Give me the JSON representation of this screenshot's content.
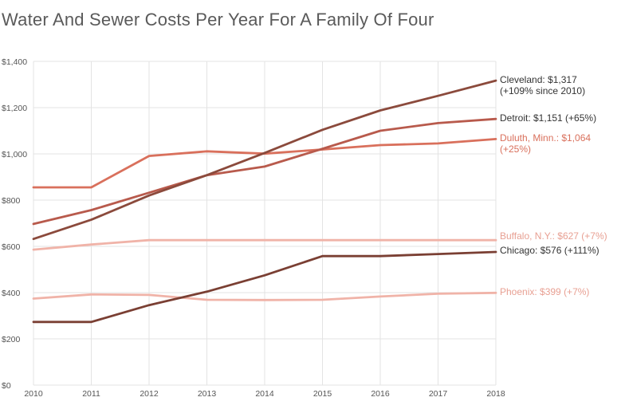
{
  "title": "Water And Sewer Costs Per Year For A Family Of Four",
  "chart_data": {
    "type": "line",
    "title": "Water And Sewer Costs Per Year For A Family Of Four",
    "xlabel": "",
    "ylabel": "",
    "x": [
      2010,
      2011,
      2012,
      2013,
      2014,
      2015,
      2016,
      2017,
      2018
    ],
    "xlim": [
      2010,
      2018
    ],
    "ylim": [
      0,
      1400
    ],
    "y_ticks": [
      0,
      200,
      400,
      600,
      800,
      1000,
      1200,
      1400
    ],
    "y_tick_labels": [
      "$0",
      "$200",
      "$400",
      "$600",
      "$800",
      "$1,000",
      "$1,200",
      "$1,400"
    ],
    "x_tick_labels": [
      "2010",
      "2011",
      "2012",
      "2013",
      "2014",
      "2015",
      "2016",
      "2017",
      "2018"
    ],
    "grid": true,
    "legend": "direct labels at right end of each line",
    "series": [
      {
        "name": "Cleveland",
        "color": "#8b4a3c",
        "label_lines": [
          "Cleveland: $1,317",
          "(+109% since 2010)"
        ],
        "label_color": "#333333",
        "values": [
          632,
          715,
          820,
          908,
          1004,
          1104,
          1188,
          1251,
          1317
        ]
      },
      {
        "name": "Detroit",
        "color": "#b85a4c",
        "label_lines": [
          "Detroit: $1,151 (+65%)"
        ],
        "label_color": "#333333",
        "values": [
          697,
          757,
          832,
          908,
          945,
          1022,
          1100,
          1133,
          1151
        ]
      },
      {
        "name": "Duluth, Minn.",
        "color": "#d9705c",
        "label_lines": [
          "Duluth, Minn.: $1,064",
          "(+25%)"
        ],
        "label_color": "#d9705c",
        "values": [
          855,
          855,
          991,
          1011,
          1001,
          1019,
          1038,
          1045,
          1064
        ]
      },
      {
        "name": "Buffalo, N.Y.",
        "color": "#f0b3a8",
        "label_lines": [
          "Buffalo, N.Y.: $627 (+7%)"
        ],
        "label_color": "#e8a093",
        "values": [
          586,
          608,
          627,
          627,
          627,
          627,
          627,
          627,
          627
        ]
      },
      {
        "name": "Chicago",
        "color": "#7a3f33",
        "label_lines": [
          "Chicago: $576 (+111%)"
        ],
        "label_color": "#333333",
        "values": [
          273,
          273,
          346,
          404,
          475,
          558,
          558,
          567,
          576
        ]
      },
      {
        "name": "Phoenix",
        "color": "#f0b3a8",
        "label_lines": [
          "Phoenix: $399 (+7%)"
        ],
        "label_color": "#e8a093",
        "values": [
          374,
          392,
          390,
          369,
          368,
          369,
          383,
          395,
          399
        ]
      }
    ]
  }
}
